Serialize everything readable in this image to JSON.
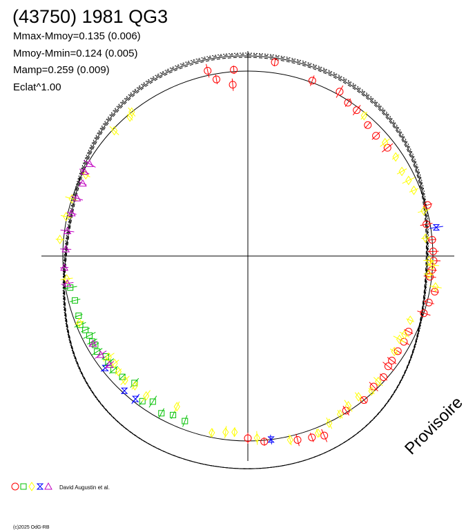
{
  "chart_data": {
    "type": "polar-lightcurve",
    "title": "(43750) 1981 QG3",
    "stats": [
      "Mmax-Mmoy=0.135 (0.006)",
      "Mmoy-Mmin=0.124 (0.005)",
      "Mamp=0.259 (0.009)",
      "Eclat^1.00"
    ],
    "watermark": "Provisoire",
    "observers": "David Augustin et al.",
    "copyright": "(c)2025 OdG-RB",
    "grid": false,
    "reference_circle": true,
    "mmax_minus_mmoy": 0.135,
    "mmoy_minus_mmin": 0.124,
    "amplitude": 0.259,
    "series": [
      {
        "marker": "circle",
        "color": "#ff0000",
        "points": [
          {
            "phase": 0.022,
            "r": 1.058
          },
          {
            "phase": 0.056,
            "r": 1.01
          },
          {
            "phase": 0.081,
            "r": 1.018
          },
          {
            "phase": 0.092,
            "r": 0.99
          },
          {
            "phase": 0.102,
            "r": 0.984
          },
          {
            "phase": 0.118,
            "r": 0.96
          },
          {
            "phase": 0.13,
            "r": 0.95
          },
          {
            "phase": 0.145,
            "r": 0.955
          },
          {
            "phase": 0.206,
            "r": 1.01
          },
          {
            "phase": 0.222,
            "r": 0.98
          },
          {
            "phase": 0.236,
            "r": 1.0
          },
          {
            "phase": 0.246,
            "r": 1.002
          },
          {
            "phase": 0.254,
            "r": 1.004
          },
          {
            "phase": 0.262,
            "r": 0.998
          },
          {
            "phase": 0.268,
            "r": 0.99
          },
          {
            "phase": 0.28,
            "r": 1.028
          },
          {
            "phase": 0.29,
            "r": 1.01
          },
          {
            "phase": 0.3,
            "r": 1.0
          },
          {
            "phase": 0.32,
            "r": 0.96
          },
          {
            "phase": 0.33,
            "r": 0.962
          },
          {
            "phase": 0.34,
            "r": 0.96
          },
          {
            "phase": 0.35,
            "r": 0.962
          },
          {
            "phase": 0.356,
            "r": 0.965
          },
          {
            "phase": 0.366,
            "r": 0.983
          },
          {
            "phase": 0.378,
            "r": 0.98
          },
          {
            "phase": 0.392,
            "r": 1.0
          },
          {
            "phase": 0.41,
            "r": 0.99
          },
          {
            "phase": 0.436,
            "r": 1.055
          },
          {
            "phase": 0.446,
            "r": 1.04
          },
          {
            "phase": 0.458,
            "r": 1.03
          },
          {
            "phase": 0.486,
            "r": 1.007
          },
          {
            "phase": 0.5,
            "r": 0.985
          },
          {
            "phase": 0.966,
            "r": 1.025
          },
          {
            "phase": 0.972,
            "r": 0.97
          },
          {
            "phase": 0.986,
            "r": 0.93
          },
          {
            "phase": 0.988,
            "r": 1.01
          }
        ]
      },
      {
        "marker": "square",
        "color": "#00c000",
        "points": [
          {
            "phase": 0.558,
            "r": 0.955
          },
          {
            "phase": 0.57,
            "r": 0.95
          },
          {
            "phase": 0.58,
            "r": 0.97
          },
          {
            "phase": 0.592,
            "r": 0.94
          },
          {
            "phase": 0.6,
            "r": 0.97
          },
          {
            "phase": 0.616,
            "r": 0.92
          },
          {
            "phase": 0.628,
            "r": 0.942
          },
          {
            "phase": 0.638,
            "r": 0.952
          },
          {
            "phase": 0.646,
            "r": 0.95
          },
          {
            "phase": 0.652,
            "r": 0.94
          },
          {
            "phase": 0.66,
            "r": 0.965
          },
          {
            "phase": 0.666,
            "r": 0.955
          },
          {
            "phase": 0.67,
            "r": 0.96
          },
          {
            "phase": 0.676,
            "r": 0.958
          },
          {
            "phase": 0.682,
            "r": 0.965
          },
          {
            "phase": 0.688,
            "r": 0.98
          },
          {
            "phase": 0.696,
            "r": 0.97
          },
          {
            "phase": 0.71,
            "r": 0.965
          },
          {
            "phase": 0.722,
            "r": 0.975
          }
        ]
      },
      {
        "marker": "diamond",
        "color": "#ffff00",
        "points": [
          {
            "phase": 0.11,
            "r": 0.985
          },
          {
            "phase": 0.14,
            "r": 0.962
          },
          {
            "phase": 0.156,
            "r": 0.962
          },
          {
            "phase": 0.17,
            "r": 0.95
          },
          {
            "phase": 0.18,
            "r": 0.96
          },
          {
            "phase": 0.19,
            "r": 0.965
          },
          {
            "phase": 0.21,
            "r": 0.982
          },
          {
            "phase": 0.234,
            "r": 0.965
          },
          {
            "phase": 0.254,
            "r": 0.979
          },
          {
            "phase": 0.258,
            "r": 0.998
          },
          {
            "phase": 0.266,
            "r": 0.982
          },
          {
            "phase": 0.276,
            "r": 1.028
          },
          {
            "phase": 0.31,
            "r": 0.944
          },
          {
            "phase": 0.324,
            "r": 0.947
          },
          {
            "phase": 0.33,
            "r": 0.935
          },
          {
            "phase": 0.342,
            "r": 0.945
          },
          {
            "phase": 0.372,
            "r": 0.978
          },
          {
            "phase": 0.382,
            "r": 0.99
          },
          {
            "phase": 0.394,
            "r": 0.968
          },
          {
            "phase": 0.406,
            "r": 0.975
          },
          {
            "phase": 0.416,
            "r": 0.99
          },
          {
            "phase": 0.428,
            "r": 1.005
          },
          {
            "phase": 0.44,
            "r": 1.03
          },
          {
            "phase": 0.464,
            "r": 1.02
          },
          {
            "phase": 0.492,
            "r": 0.985
          },
          {
            "phase": 0.512,
            "r": 0.955
          },
          {
            "phase": 0.52,
            "r": 0.96
          },
          {
            "phase": 0.532,
            "r": 0.975
          },
          {
            "phase": 0.57,
            "r": 0.9
          },
          {
            "phase": 0.6,
            "r": 0.935
          },
          {
            "phase": 0.614,
            "r": 0.93
          },
          {
            "phase": 0.624,
            "r": 0.945
          },
          {
            "phase": 0.634,
            "r": 0.938
          },
          {
            "phase": 0.642,
            "r": 0.925
          },
          {
            "phase": 0.65,
            "r": 0.93
          },
          {
            "phase": 0.69,
            "r": 0.98
          },
          {
            "phase": 0.73,
            "r": 0.987
          },
          {
            "phase": 0.764,
            "r": 1.02
          },
          {
            "phase": 0.784,
            "r": 1.005
          },
          {
            "phase": 0.8,
            "r": 1.0
          },
          {
            "phase": 0.824,
            "r": 0.98
          },
          {
            "phase": 0.87,
            "r": 0.99
          },
          {
            "phase": 0.888,
            "r": 0.985
          },
          {
            "phase": 0.892,
            "r": 1.0
          }
        ]
      },
      {
        "marker": "hourglass",
        "color": "#0000ff",
        "points": [
          {
            "phase": 0.226,
            "r": 1.03
          },
          {
            "phase": 0.48,
            "r": 1.0
          },
          {
            "phase": 0.606,
            "r": 0.983
          },
          {
            "phase": 0.618,
            "r": 0.988
          },
          {
            "phase": 0.644,
            "r": 0.98
          }
        ]
      },
      {
        "marker": "triangle",
        "color": "#c000c0",
        "points": [
          {
            "phase": 0.644,
            "r": 0.952
          },
          {
            "phase": 0.656,
            "r": 0.958
          },
          {
            "phase": 0.668,
            "r": 0.962
          },
          {
            "phase": 0.726,
            "r": 0.987
          },
          {
            "phase": 0.74,
            "r": 0.994
          },
          {
            "phase": 0.756,
            "r": 0.985
          },
          {
            "phase": 0.772,
            "r": 0.985
          },
          {
            "phase": 0.788,
            "r": 0.98
          },
          {
            "phase": 0.802,
            "r": 0.975
          },
          {
            "phase": 0.816,
            "r": 0.975
          },
          {
            "phase": 0.826,
            "r": 0.995
          },
          {
            "phase": 0.834,
            "r": 0.99
          }
        ]
      }
    ]
  }
}
